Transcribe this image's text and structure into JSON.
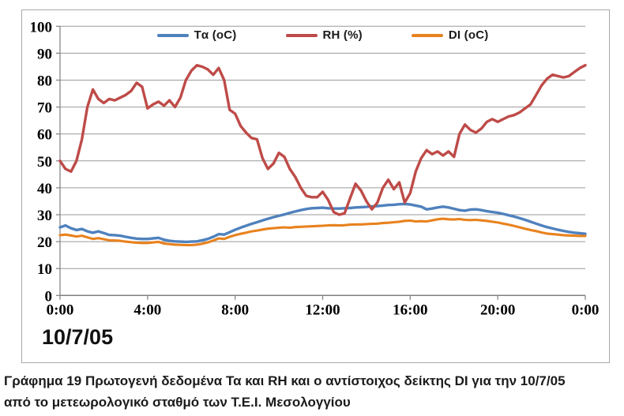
{
  "figure": {
    "date_label": "10/7/05",
    "caption": {
      "lines": [
        "Γράφημα 19 Πρωτογενή δεδομένα Τα και RH και ο αντίστοιχος δείκτης DI για την 10/7/05",
        "από το μετεωρολογικό σταθμό των Τ.Ε.Ι. Μεσολογγίου"
      ]
    }
  },
  "colors": {
    "ta_line": "#4F81BD",
    "rh_line": "#BE4B48",
    "di_line": "#E8821E",
    "gridline": "#9a9a9a",
    "axis": "#7f7f7f",
    "frame_border": "#a9a9a9",
    "text": "#000000"
  },
  "chart_data": {
    "type": "line",
    "title": "",
    "xlabel": "",
    "ylabel": "",
    "ylim": [
      0,
      100
    ],
    "ytick_step": 10,
    "ytick_labels": [
      "0",
      "10",
      "20",
      "30",
      "40",
      "50",
      "60",
      "70",
      "80",
      "90",
      "100"
    ],
    "x_tick_hours": [
      0,
      4,
      8,
      12,
      16,
      20,
      24
    ],
    "x_tick_labels": [
      "0:00",
      "4:00",
      "8:00",
      "12:00",
      "16:00",
      "20:00",
      "0:00"
    ],
    "x_start_hour": 0,
    "x_step_hours": 0.25,
    "grid": "horizontal",
    "legend_position": "top-center",
    "series": [
      {
        "name": "Tα (oC)",
        "color": "#4F81BD",
        "width": 3.4,
        "values": [
          25.3,
          26,
          25,
          24.3,
          24.7,
          23.8,
          23.3,
          23.8,
          23.2,
          22.5,
          22.4,
          22.2,
          21.8,
          21.4,
          21.1,
          21,
          21,
          21.2,
          21.4,
          20.7,
          20.3,
          20.1,
          20,
          19.9,
          20,
          20.1,
          20.5,
          21,
          21.8,
          22.8,
          22.6,
          23.5,
          24.4,
          25.2,
          25.9,
          26.6,
          27.2,
          27.9,
          28.5,
          29.1,
          29.6,
          30.1,
          30.7,
          31.2,
          31.7,
          32.1,
          32.4,
          32.5,
          32.6,
          32.4,
          32.3,
          32.3,
          32.4,
          32.5,
          32.7,
          32.8,
          32.9,
          33.1,
          33.2,
          33.4,
          33.6,
          33.7,
          33.9,
          34,
          33.8,
          33.4,
          33,
          32,
          32.3,
          32.7,
          33,
          32.7,
          32.2,
          31.7,
          31.5,
          31.9,
          32,
          31.7,
          31.3,
          31,
          30.7,
          30.3,
          29.8,
          29.3,
          28.7,
          28.1,
          27.4,
          26.7,
          26,
          25.4,
          24.9,
          24.4,
          24,
          23.6,
          23.3,
          23.1,
          22.9
        ]
      },
      {
        "name": "RH (%)",
        "color": "#BE4B48",
        "width": 3.4,
        "values": [
          50,
          47,
          46,
          50,
          58,
          70,
          76.5,
          73,
          71.5,
          73,
          72.5,
          73.5,
          74.5,
          76,
          79,
          77.5,
          69.5,
          71,
          72,
          70.5,
          72.5,
          70,
          73.5,
          80,
          83.5,
          85.5,
          85,
          84,
          82,
          84.5,
          80,
          69,
          67.5,
          63,
          60.5,
          58.5,
          58,
          51,
          47,
          49,
          53,
          51.5,
          47,
          44,
          40,
          37,
          36.5,
          36.5,
          38.5,
          35.5,
          31,
          30,
          30.5,
          36,
          41.5,
          39,
          35,
          32,
          34.5,
          40,
          43,
          39.5,
          42,
          34.5,
          38,
          46,
          51,
          54,
          52.5,
          53.5,
          52,
          53.5,
          51.5,
          60,
          63.5,
          61.5,
          60.5,
          62,
          64.5,
          65.5,
          64.5,
          65.5,
          66.5,
          67,
          68,
          69.5,
          71,
          74.5,
          78,
          80.5,
          82,
          81.5,
          81,
          81.5,
          83,
          84.5,
          85.5
        ]
      },
      {
        "name": "DI (oC)",
        "color": "#E8821E",
        "width": 3.1,
        "values": [
          22.4,
          22.6,
          22.3,
          21.9,
          22.2,
          21.6,
          21,
          21.3,
          20.9,
          20.5,
          20.4,
          20.3,
          20,
          19.8,
          19.6,
          19.5,
          19.5,
          19.7,
          19.9,
          19.3,
          19.1,
          18.9,
          18.8,
          18.7,
          18.7,
          18.9,
          19.2,
          19.7,
          20.4,
          21.2,
          21,
          21.8,
          22.4,
          22.9,
          23.3,
          23.8,
          24.1,
          24.5,
          24.8,
          25,
          25.2,
          25.3,
          25.2,
          25.4,
          25.5,
          25.6,
          25.7,
          25.8,
          25.9,
          26,
          26.1,
          26,
          26.1,
          26.3,
          26.4,
          26.4,
          26.5,
          26.6,
          26.7,
          26.9,
          27,
          27.2,
          27.4,
          27.7,
          27.8,
          27.5,
          27.6,
          27.5,
          27.9,
          28.3,
          28.5,
          28.3,
          28.2,
          28.4,
          28.1,
          28,
          28.1,
          27.9,
          27.7,
          27.4,
          27.1,
          26.7,
          26.3,
          25.8,
          25.3,
          24.8,
          24.3,
          23.9,
          23.4,
          23,
          22.8,
          22.6,
          22.4,
          22.3,
          22.2,
          22.1,
          22.1
        ]
      }
    ]
  }
}
